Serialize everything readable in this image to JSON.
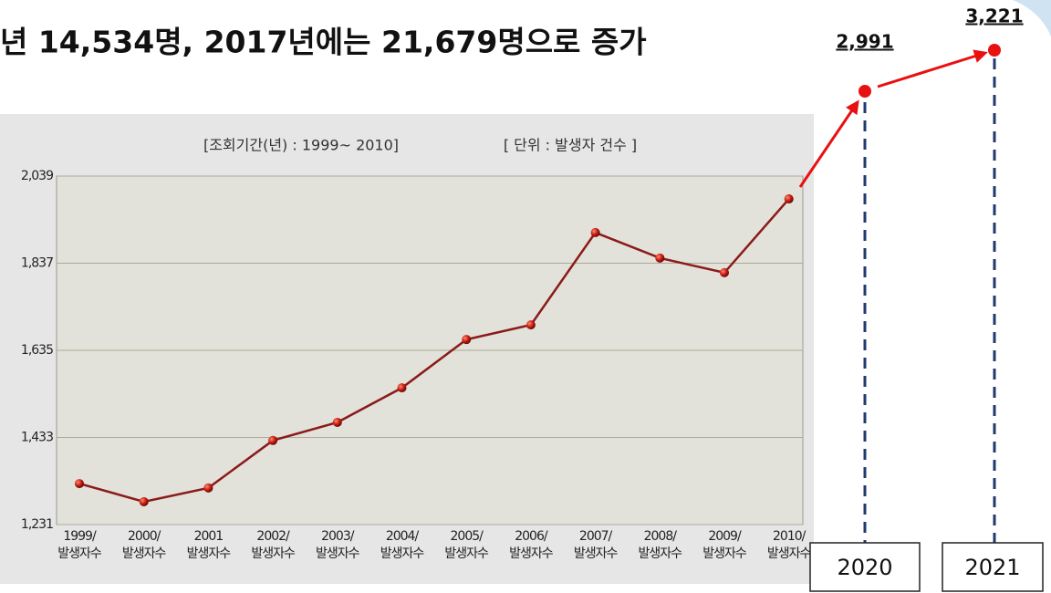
{
  "headline": "년 14,534명, 2017년에는 21,679명으로 증가",
  "chart_data": {
    "type": "line",
    "subtitle": "[조회기간(년) : 1999~ 2010]",
    "unit_label": "[ 단위 : 발생자 건수 ]",
    "categories": [
      "1999/",
      "2000/",
      "2001",
      "2002/",
      "2003/",
      "2004/",
      "2005/",
      "2006/",
      "2007/",
      "2008/",
      "2009/",
      "2010/"
    ],
    "category_sublabels": [
      "발생자수",
      "발생자수",
      "발생자수",
      "발생자수",
      "발생자수",
      "발생자수",
      "발생자수",
      "발생자수",
      "발생자수",
      "발생자수",
      "발생자수",
      "발생자수"
    ],
    "series": [
      {
        "name": "발생자수",
        "color": "#8b1a1a",
        "values": [
          1326,
          1284,
          1316,
          1426,
          1468,
          1548,
          1660,
          1694,
          1908,
          1849,
          1815,
          1986
        ]
      }
    ],
    "ylim": [
      1231,
      2039
    ],
    "yticks": [
      {
        "value": 1231,
        "label": "1,231"
      },
      {
        "value": 1433,
        "label": "1,433"
      },
      {
        "value": 1635,
        "label": "1,635"
      },
      {
        "value": 1837,
        "label": "1,837"
      },
      {
        "value": 2039,
        "label": "2,039"
      }
    ],
    "grid": true,
    "projection": {
      "categories": [
        "2020",
        "2021"
      ],
      "values": [
        2991,
        3221
      ],
      "value_labels": [
        "2,991",
        "3,221"
      ],
      "color": "#e81010"
    }
  }
}
